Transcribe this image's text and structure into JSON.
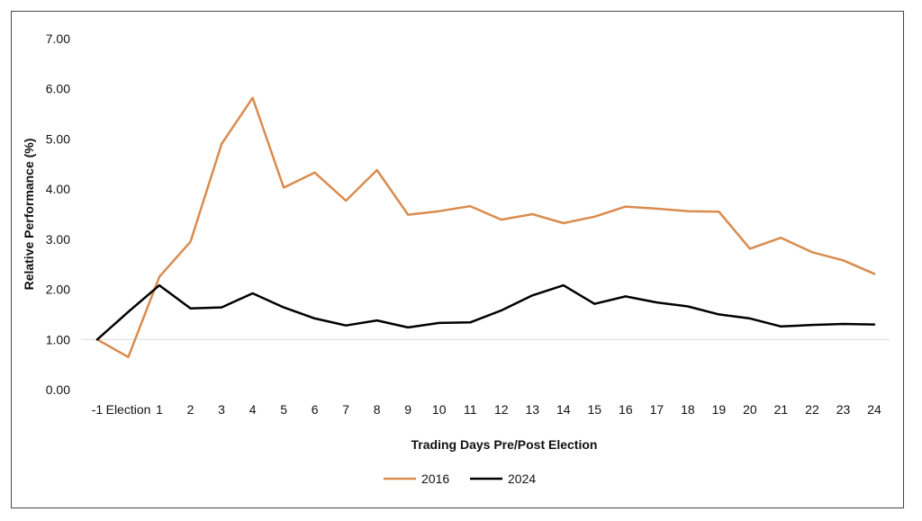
{
  "chart_data": {
    "type": "line",
    "title": "",
    "xlabel": "Trading Days Pre/Post Election",
    "ylabel": "Relative Performance (%)",
    "categories": [
      "-1",
      "Election",
      "1",
      "2",
      "3",
      "4",
      "5",
      "6",
      "7",
      "8",
      "9",
      "10",
      "11",
      "12",
      "13",
      "14",
      "15",
      "16",
      "17",
      "18",
      "19",
      "20",
      "21",
      "22",
      "23",
      "24"
    ],
    "ylim": [
      0,
      7
    ],
    "yticks": [
      "0.00",
      "1.00",
      "2.00",
      "3.00",
      "4.00",
      "5.00",
      "6.00",
      "7.00"
    ],
    "grid": "baseline-only",
    "legend_position": "bottom",
    "series": [
      {
        "name": "2016",
        "color": "#D98C4F",
        "values": [
          1.0,
          0.65,
          2.25,
          2.95,
          4.9,
          5.82,
          4.03,
          4.33,
          3.77,
          4.38,
          3.49,
          3.56,
          3.66,
          3.39,
          3.5,
          3.32,
          3.45,
          3.65,
          3.61,
          3.56,
          3.55,
          2.81,
          3.03,
          2.74,
          2.58,
          2.31
        ]
      },
      {
        "name": "2024",
        "color": "#000000",
        "values": [
          1.0,
          1.55,
          2.08,
          1.62,
          1.64,
          1.92,
          1.64,
          1.42,
          1.28,
          1.38,
          1.24,
          1.33,
          1.34,
          1.58,
          1.88,
          2.08,
          1.71,
          1.86,
          1.74,
          1.66,
          1.5,
          1.42,
          1.26,
          1.29,
          1.31,
          1.3
        ]
      }
    ]
  }
}
